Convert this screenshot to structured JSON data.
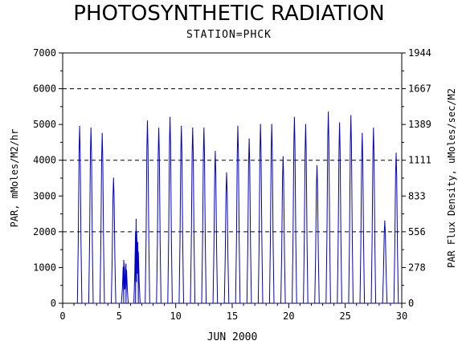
{
  "chart_data": {
    "type": "line",
    "title": "PHOTOSYNTHETIC RADIATION",
    "subtitle": "STATION=PHCK",
    "xlabel": "JUN 2000",
    "ylabel_left": "PAR, mMoles/M2/hr",
    "ylabel_right": "PAR Flux Density, uMoles/sec/M2",
    "xlim": [
      0,
      30
    ],
    "ylim": [
      0,
      7000
    ],
    "x_ticks": [
      0,
      5,
      10,
      15,
      20,
      25,
      30
    ],
    "y_ticks_left": [
      0,
      1000,
      2000,
      3000,
      4000,
      5000,
      6000,
      7000
    ],
    "y_ticks_right": [
      "0",
      "278",
      "556",
      "833",
      "1111",
      "1389",
      "1667",
      "1944"
    ],
    "grid_lines_y": [
      2000,
      4000,
      6000
    ],
    "line_color": "#0000cc",
    "series": [
      {
        "daily_peaks": [
          {
            "day": 1.5,
            "peak": 4950
          },
          {
            "day": 2.5,
            "peak": 4900
          },
          {
            "day": 3.5,
            "peak": 4750
          },
          {
            "day": 4.5,
            "peak": 3500
          },
          {
            "day": 5.4,
            "peak": 1200
          },
          {
            "day": 5.6,
            "peak": 1100
          },
          {
            "day": 6.5,
            "peak": 2350
          },
          {
            "day": 6.65,
            "peak": 1700
          },
          {
            "day": 7.5,
            "peak": 5100
          },
          {
            "day": 8.5,
            "peak": 4900
          },
          {
            "day": 9.5,
            "peak": 5200
          },
          {
            "day": 10.5,
            "peak": 4950
          },
          {
            "day": 11.5,
            "peak": 4900
          },
          {
            "day": 12.5,
            "peak": 4900
          },
          {
            "day": 13.5,
            "peak": 4250
          },
          {
            "day": 14.5,
            "peak": 3650
          },
          {
            "day": 15.5,
            "peak": 4950
          },
          {
            "day": 16.5,
            "peak": 4600
          },
          {
            "day": 17.5,
            "peak": 5000
          },
          {
            "day": 18.5,
            "peak": 5000
          },
          {
            "day": 19.5,
            "peak": 4100
          },
          {
            "day": 20.5,
            "peak": 5200
          },
          {
            "day": 21.5,
            "peak": 5000
          },
          {
            "day": 22.5,
            "peak": 3850
          },
          {
            "day": 23.5,
            "peak": 5350
          },
          {
            "day": 24.5,
            "peak": 5050
          },
          {
            "day": 25.5,
            "peak": 5250
          },
          {
            "day": 26.5,
            "peak": 4750
          },
          {
            "day": 27.5,
            "peak": 4900
          },
          {
            "day": 28.5,
            "peak": 2300
          },
          {
            "day": 29.5,
            "peak": 4200
          }
        ]
      }
    ]
  }
}
